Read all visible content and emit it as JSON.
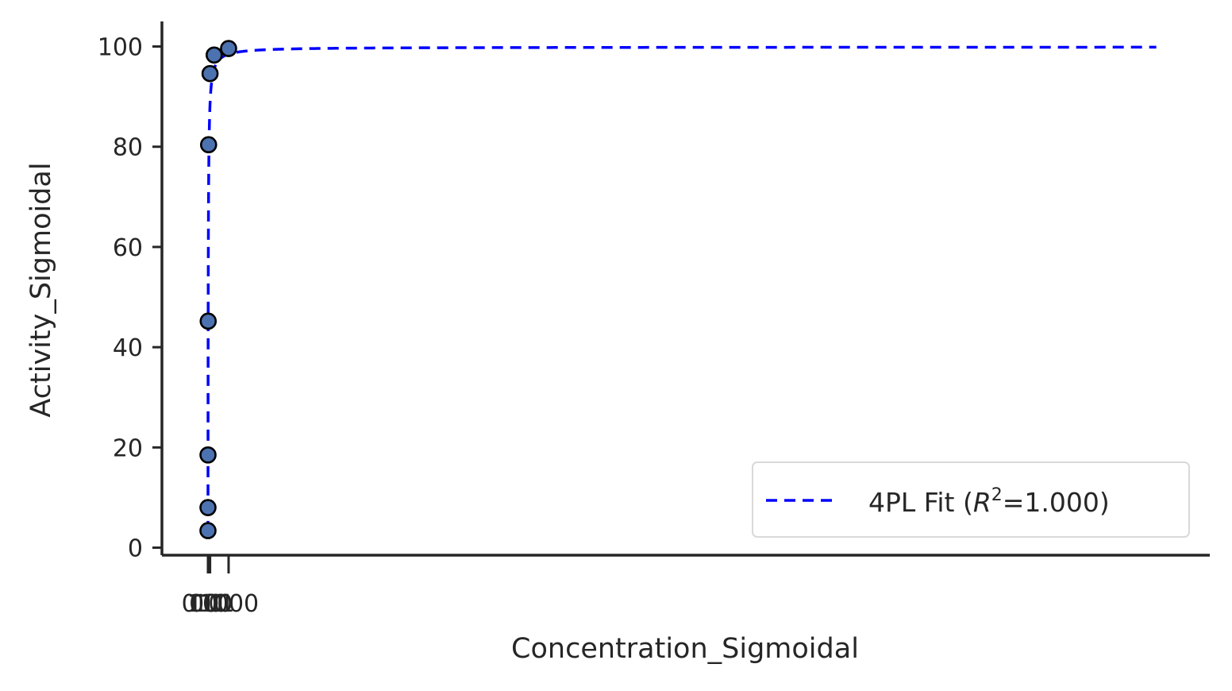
{
  "chart_data": {
    "type": "scatter",
    "xlabel": "Concentration_Sigmoidal",
    "ylabel": "Activity_Sigmoidal",
    "ylim": [
      -1.5,
      105
    ],
    "y_ticks": [
      "0",
      "20",
      "40",
      "60",
      "80",
      "100"
    ],
    "x_tick_labels": [
      "0.01",
      "0.1",
      "1",
      "10",
      "100",
      "1000"
    ],
    "grid": false,
    "legend_position": "lower-right",
    "points": {
      "x": [
        0.01,
        0.1,
        1,
        10,
        30,
        100,
        300,
        1000
      ],
      "y": [
        3.4,
        8.0,
        18.5,
        45.2,
        80.4,
        94.6,
        98.3,
        99.6
      ]
    },
    "fit_curve": {
      "name": "4PL Fit",
      "r2_label": "=1.000",
      "bottom": 3.0,
      "top": 99.9,
      "ec50": 12,
      "hill": 0.95,
      "x_max": 46000
    },
    "colors": {
      "points": "#4c72b0",
      "point_edge": "#000000",
      "fit_line": "#0000ff",
      "axis": "#262626"
    }
  }
}
